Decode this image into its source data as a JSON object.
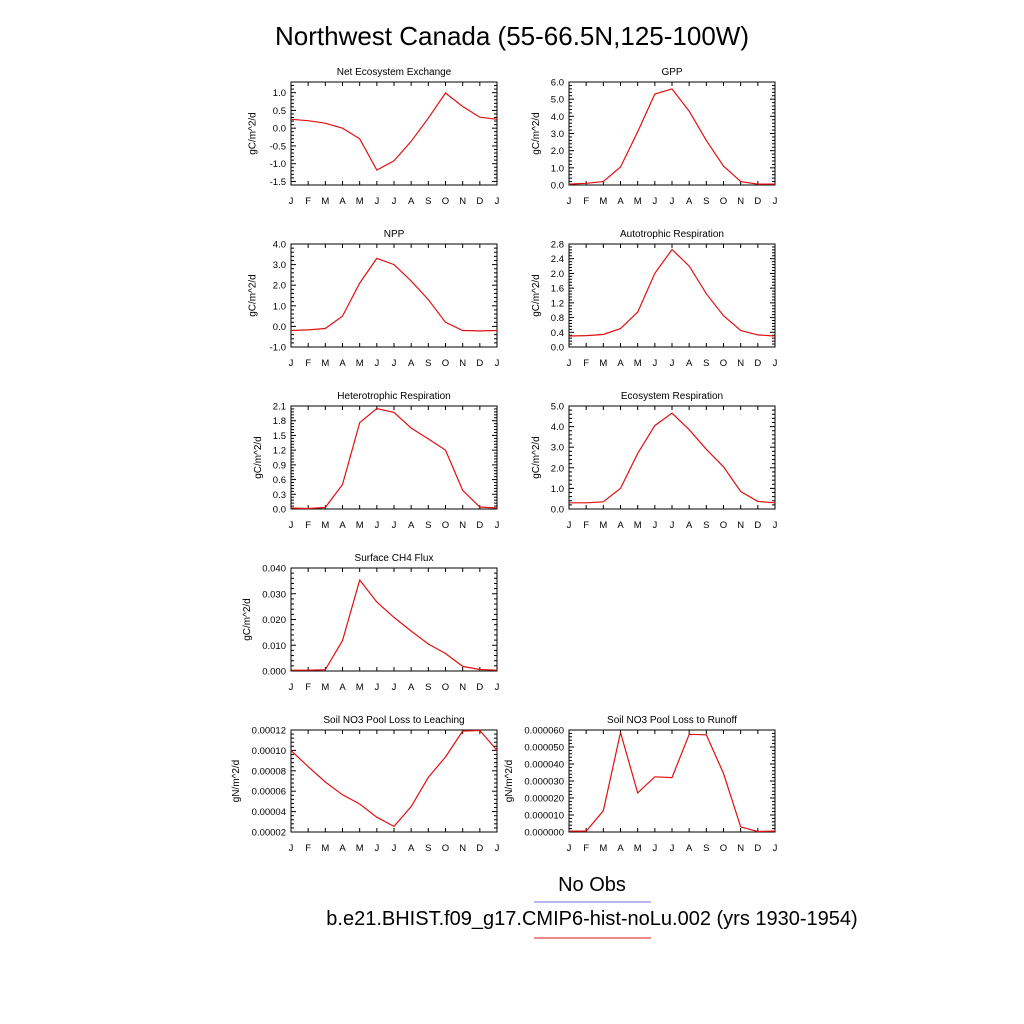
{
  "figure_title": "Northwest Canada (55-66.5N,125-100W)",
  "legend": {
    "entries": [
      {
        "label": "No Obs",
        "color": "#6f6fe6"
      },
      {
        "label": "b.e21.BHIST.f09_g17.CMIP6-hist-noLu.002 (yrs 1930-1954)",
        "color": "#e01010"
      }
    ]
  },
  "line_color": "#e01010",
  "chart_data": [
    {
      "type": "line",
      "title": "Net Ecosystem Exchange",
      "ylabel": "gC/m^2/d",
      "categories": [
        "J",
        "F",
        "M",
        "A",
        "M",
        "J",
        "J",
        "A",
        "S",
        "O",
        "N",
        "D",
        "J"
      ],
      "ylim": [
        -1.6,
        1.3
      ],
      "yticks": [
        1.0,
        0.5,
        0.0,
        -0.5,
        -1.0,
        -1.5
      ],
      "ytick_labels": [
        "1.0",
        "0.5",
        "0.0",
        "-0.5",
        "-1.0",
        "-1.5"
      ],
      "values": [
        0.25,
        0.21,
        0.14,
        0.0,
        -0.3,
        -1.18,
        -0.92,
        -0.37,
        0.28,
        0.99,
        0.61,
        0.31,
        0.25
      ]
    },
    {
      "type": "line",
      "title": "GPP",
      "ylabel": "gC/m^2/d",
      "categories": [
        "J",
        "F",
        "M",
        "A",
        "M",
        "J",
        "J",
        "A",
        "S",
        "O",
        "N",
        "D",
        "J"
      ],
      "ylim": [
        0.0,
        6.0
      ],
      "yticks": [
        6.0,
        5.0,
        4.0,
        3.0,
        2.0,
        1.0,
        0.0
      ],
      "ytick_labels": [
        "6.0",
        "5.0",
        "4.0",
        "3.0",
        "2.0",
        "1.0",
        "0.0"
      ],
      "values": [
        0.05,
        0.1,
        0.2,
        1.05,
        3.1,
        5.3,
        5.6,
        4.3,
        2.6,
        1.1,
        0.2,
        0.05,
        0.05
      ]
    },
    {
      "type": "line",
      "title": "NPP",
      "ylabel": "gC/m^2/d",
      "categories": [
        "J",
        "F",
        "M",
        "A",
        "M",
        "J",
        "J",
        "A",
        "S",
        "O",
        "N",
        "D",
        "J"
      ],
      "ylim": [
        -1.0,
        4.0
      ],
      "yticks": [
        4.0,
        3.0,
        2.0,
        1.0,
        0.0,
        -1.0
      ],
      "ytick_labels": [
        "4.0",
        "3.0",
        "2.0",
        "1.0",
        "0.0",
        "-1.0"
      ],
      "values": [
        -0.2,
        -0.17,
        -0.1,
        0.5,
        2.1,
        3.3,
        3.0,
        2.2,
        1.3,
        0.2,
        -0.2,
        -0.22,
        -0.2
      ]
    },
    {
      "type": "line",
      "title": "Autotrophic Respiration",
      "ylabel": "gC/m^2/d",
      "categories": [
        "J",
        "F",
        "M",
        "A",
        "M",
        "J",
        "J",
        "A",
        "S",
        "O",
        "N",
        "D",
        "J"
      ],
      "ylim": [
        0.0,
        2.8
      ],
      "yticks": [
        2.8,
        2.4,
        2.0,
        1.6,
        1.2,
        0.8,
        0.4,
        0.0
      ],
      "ytick_labels": [
        "2.8",
        "2.4",
        "2.0",
        "1.6",
        "1.2",
        "0.8",
        "0.4",
        "0.0"
      ],
      "values": [
        0.3,
        0.31,
        0.34,
        0.5,
        0.95,
        2.0,
        2.65,
        2.2,
        1.45,
        0.85,
        0.45,
        0.33,
        0.3
      ]
    },
    {
      "type": "line",
      "title": "Heterotrophic Respiration",
      "ylabel": "gC/m^2/d",
      "categories": [
        "J",
        "F",
        "M",
        "A",
        "M",
        "J",
        "J",
        "A",
        "S",
        "O",
        "N",
        "D",
        "J"
      ],
      "ylim": [
        0.0,
        2.1
      ],
      "yticks": [
        2.1,
        1.8,
        1.5,
        1.2,
        0.9,
        0.6,
        0.3,
        0.0
      ],
      "ytick_labels": [
        "2.1",
        "1.8",
        "1.5",
        "1.2",
        "0.9",
        "0.6",
        "0.3",
        "0.0"
      ],
      "values": [
        0.02,
        0.01,
        0.03,
        0.5,
        1.76,
        2.05,
        1.97,
        1.65,
        1.43,
        1.2,
        0.38,
        0.04,
        0.02
      ]
    },
    {
      "type": "line",
      "title": "Ecosystem Respiration",
      "ylabel": "gC/m^2/d",
      "categories": [
        "J",
        "F",
        "M",
        "A",
        "M",
        "J",
        "J",
        "A",
        "S",
        "O",
        "N",
        "D",
        "J"
      ],
      "ylim": [
        0.0,
        5.0
      ],
      "yticks": [
        5.0,
        4.0,
        3.0,
        2.0,
        1.0,
        0.0
      ],
      "ytick_labels": [
        "5.0",
        "4.0",
        "3.0",
        "2.0",
        "1.0",
        "0.0"
      ],
      "values": [
        0.3,
        0.3,
        0.35,
        1.0,
        2.7,
        4.05,
        4.65,
        3.85,
        2.9,
        2.05,
        0.85,
        0.37,
        0.3
      ]
    },
    {
      "type": "line",
      "title": "Surface CH4 Flux",
      "ylabel": "gC/m^2/d",
      "categories": [
        "J",
        "F",
        "M",
        "A",
        "M",
        "J",
        "J",
        "A",
        "S",
        "O",
        "N",
        "D",
        "J"
      ],
      "ylim": [
        0.0,
        0.04
      ],
      "yticks": [
        0.04,
        0.03,
        0.02,
        0.01,
        0.0
      ],
      "ytick_labels": [
        "0.040",
        "0.030",
        "0.020",
        "0.010",
        "0.000"
      ],
      "values": [
        0.0003,
        0.0003,
        0.0005,
        0.0118,
        0.0353,
        0.0268,
        0.0208,
        0.0155,
        0.0105,
        0.0068,
        0.0018,
        0.0006,
        0.0003
      ]
    },
    {
      "type": "line",
      "title": "Soil NO3 Pool Loss to Leaching",
      "ylabel": "gN/m^2/d",
      "categories": [
        "J",
        "F",
        "M",
        "A",
        "M",
        "J",
        "J",
        "A",
        "S",
        "O",
        "N",
        "D",
        "J"
      ],
      "ylim": [
        2e-05,
        0.00012
      ],
      "yticks": [
        0.00012,
        0.0001,
        8e-05,
        6e-05,
        4e-05,
        2e-05
      ],
      "ytick_labels": [
        "0.00012",
        "0.00010",
        "0.00008",
        "0.00006",
        "0.00004",
        "0.00002"
      ],
      "values": [
        0.0001,
        8.4e-05,
        6.9e-05,
        5.65e-05,
        4.75e-05,
        3.45e-05,
        2.55e-05,
        4.5e-05,
        7.35e-05,
        9.35e-05,
        0.000119,
        0.0001195,
        0.0001
      ]
    },
    {
      "type": "line",
      "title": "Soil NO3 Pool Loss to Runoff",
      "ylabel": "gN/m^2/d",
      "categories": [
        "J",
        "F",
        "M",
        "A",
        "M",
        "J",
        "J",
        "A",
        "S",
        "O",
        "N",
        "D",
        "J"
      ],
      "ylim": [
        0.0,
        6e-05
      ],
      "yticks": [
        6e-05,
        5e-05,
        4e-05,
        3e-05,
        2e-05,
        1e-05,
        0.0
      ],
      "ytick_labels": [
        "0.000060",
        "0.000050",
        "0.000040",
        "0.000030",
        "0.000020",
        "0.000010",
        "0.000000"
      ],
      "values": [
        5e-07,
        5e-07,
        1.25e-05,
        5.85e-05,
        2.3e-05,
        3.25e-05,
        3.2e-05,
        5.75e-05,
        5.72e-05,
        3.45e-05,
        3e-06,
        3e-07,
        5e-07
      ]
    }
  ]
}
